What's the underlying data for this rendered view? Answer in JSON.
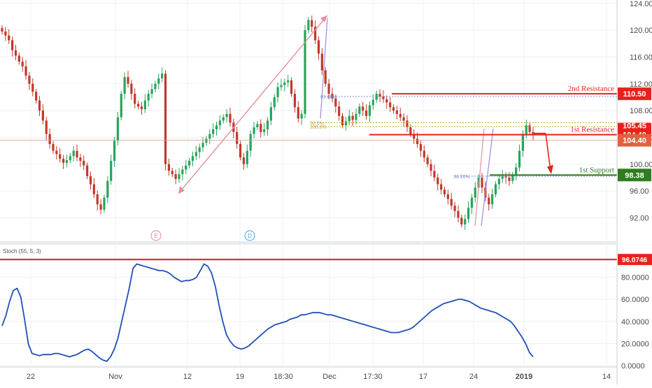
{
  "chart_data": [
    {
      "type": "candlestick",
      "panel": "price",
      "y_axis": {
        "ticks": [
          "124.00",
          "120.00",
          "116.00",
          "112.00",
          "108.00",
          "104.00",
          "100.00",
          "96.00",
          "92.00"
        ],
        "ylim": [
          88.5,
          124.5
        ]
      },
      "x_axis": {
        "ticks": [
          "22",
          "Nov",
          "12",
          "19",
          "18:30",
          "Dec",
          "17:30",
          "17",
          "24",
          "2019",
          "14"
        ]
      },
      "colors": {
        "up": "#26a65b",
        "down": "#c0392b",
        "resistance": "#e8221b",
        "support": "#2e7d1f"
      },
      "series_close": [
        119.8,
        119.2,
        118.5,
        117.0,
        116.2,
        115.3,
        114.6,
        113.2,
        112.0,
        110.8,
        109.5,
        108.0,
        106.5,
        104.5,
        103.0,
        102.0,
        101.5,
        100.8,
        100.2,
        100.6,
        101.2,
        102.0,
        101.0,
        100.5,
        99.8,
        98.2,
        97.0,
        95.5,
        94.0,
        93.2,
        95.0,
        97.5,
        100.5,
        103.5,
        107.0,
        110.5,
        113.0,
        112.0,
        110.5,
        109.0,
        108.6,
        108.2,
        109.5,
        110.5,
        111.2,
        112.0,
        112.8,
        113.5,
        100.0,
        99.0,
        98.5,
        97.8,
        98.5,
        99.2,
        99.8,
        100.5,
        101.2,
        101.8,
        102.5,
        103.2,
        103.8,
        104.5,
        105.2,
        105.8,
        106.5,
        107.0,
        107.5,
        106.2,
        104.8,
        103.0,
        101.0,
        100.0,
        102.0,
        104.5,
        105.5,
        106.0,
        104.8,
        105.2,
        106.5,
        108.5,
        110.0,
        111.5,
        111.8,
        112.2,
        112.5,
        110.5,
        108.5,
        106.8,
        107.5,
        120.0,
        121.5,
        120.5,
        118.5,
        116.5,
        114.0,
        112.0,
        110.5,
        109.8,
        108.6,
        107.2,
        105.8,
        106.4,
        107.2,
        106.6,
        107.5,
        108.6,
        108.0,
        107.2,
        108.8,
        109.6,
        110.5,
        110.1,
        109.7,
        109.2,
        108.5,
        108.0,
        107.5,
        107.0,
        106.5,
        105.5,
        104.5,
        103.8,
        103.0,
        102.0,
        101.0,
        100.0,
        99.0,
        98.0,
        97.0,
        96.2,
        95.5,
        94.8,
        93.8,
        93.0,
        92.0,
        91.0,
        91.8,
        93.5,
        95.0,
        96.5,
        98.0,
        96.5,
        95.0,
        94.0,
        95.5,
        97.0,
        97.8,
        98.2,
        98.0,
        97.5,
        98.4,
        99.5,
        102.0,
        104.5,
        105.8,
        104.8,
        104.4
      ],
      "annotations": [
        {
          "type": "hline",
          "label": "2nd Resistance",
          "price": 110.5,
          "price_tag": "110.50"
        },
        {
          "type": "hline",
          "label": "1st Resistance",
          "price": 104.4,
          "price_tag": "104.40"
        },
        {
          "type": "hline",
          "label": "1st Support",
          "price": 98.38,
          "price_tag": "98.38"
        }
      ],
      "fib_labels": [
        "61.80%",
        "50.0%",
        "100.0%",
        "38.20%"
      ],
      "price_tags": {
        "partial_tag": "105.45",
        "current_line_tag": "104.40"
      },
      "markers": [
        "E",
        "D"
      ]
    },
    {
      "type": "line",
      "panel": "oscillator",
      "title": "Stoch (55, 5, 3)",
      "y_axis": {
        "ticks": [
          "80.0000",
          "60.0000",
          "40.0000",
          "20.0000",
          "0.0000"
        ],
        "ylim": [
          0,
          100
        ]
      },
      "overbought_level": {
        "value": 96.0746,
        "tag": "96.0746"
      },
      "colors": {
        "line": "#1f4fb8",
        "level": "#e8221b"
      },
      "values": [
        36,
        45,
        58,
        68,
        70,
        62,
        42,
        20,
        11,
        10,
        9,
        10,
        10,
        10,
        11,
        11,
        10,
        9,
        8,
        9,
        10,
        12,
        14,
        15,
        13,
        10,
        7,
        5,
        4,
        8,
        15,
        25,
        40,
        55,
        70,
        88,
        92,
        91,
        90,
        89,
        88,
        87,
        86,
        86,
        85,
        83,
        80,
        78,
        76,
        77,
        77,
        78,
        80,
        86,
        92,
        90,
        84,
        72,
        55,
        40,
        28,
        22,
        18,
        16,
        15,
        16,
        18,
        21,
        24,
        27,
        30,
        33,
        35,
        37,
        38,
        39,
        40,
        42,
        43,
        44,
        46,
        46,
        47,
        48,
        48,
        48,
        47,
        46,
        46,
        45,
        44,
        43,
        42,
        41,
        40,
        39,
        38,
        37,
        36,
        35,
        34,
        33,
        32,
        31,
        30,
        30,
        30,
        31,
        32,
        33,
        35,
        38,
        41,
        44,
        47,
        50,
        52,
        54,
        56,
        57,
        58,
        59,
        60,
        60,
        59,
        58,
        56,
        54,
        52,
        51,
        50,
        49,
        48,
        46,
        44,
        42,
        40,
        36,
        31,
        26,
        20,
        12,
        8
      ]
    }
  ]
}
